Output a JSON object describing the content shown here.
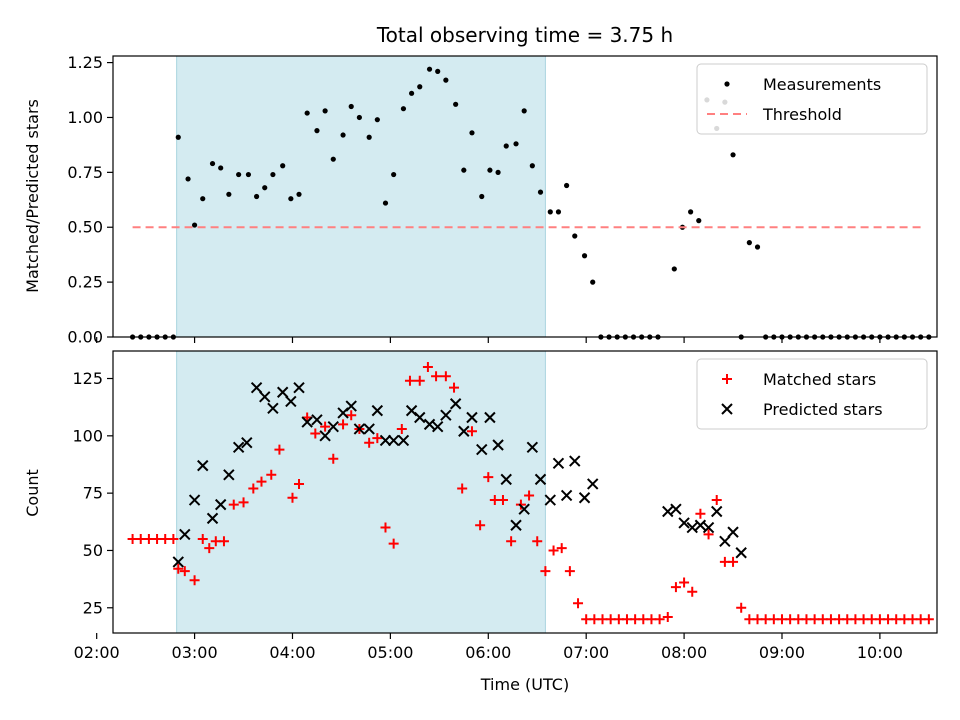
{
  "chart_data": [
    {
      "type": "scatter",
      "title": "Total observing time = 3.75 h",
      "ylabel": "Matched/Predicted stars",
      "xlabel": "",
      "xlim": [
        "02:10",
        "10:35"
      ],
      "ylim": [
        0,
        1.28
      ],
      "yticks": [
        "0.00",
        "0.25",
        "0.50",
        "0.75",
        "1.00",
        "1.25"
      ],
      "shaded_span": [
        "02:49",
        "06:35"
      ],
      "shade_color": "#d4ebf1",
      "legend_position": "upper right",
      "series": [
        {
          "name": "Measurements",
          "marker": "dot",
          "color": "#000000",
          "points": [
            [
              "02:22",
              0
            ],
            [
              "02:27",
              0
            ],
            [
              "02:32",
              0
            ],
            [
              "02:37",
              0
            ],
            [
              "02:42",
              0
            ],
            [
              "02:47",
              0
            ],
            [
              "02:50",
              0.91
            ],
            [
              "02:56",
              0.72
            ],
            [
              "03:00",
              0.51
            ],
            [
              "03:05",
              0.63
            ],
            [
              "03:11",
              0.79
            ],
            [
              "03:16",
              0.77
            ],
            [
              "03:21",
              0.65
            ],
            [
              "03:27",
              0.74
            ],
            [
              "03:33",
              0.74
            ],
            [
              "03:38",
              0.64
            ],
            [
              "03:43",
              0.68
            ],
            [
              "03:48",
              0.74
            ],
            [
              "03:54",
              0.78
            ],
            [
              "03:59",
              0.63
            ],
            [
              "04:04",
              0.65
            ],
            [
              "04:09",
              1.02
            ],
            [
              "04:15",
              0.94
            ],
            [
              "04:20",
              1.03
            ],
            [
              "04:25",
              0.81
            ],
            [
              "04:31",
              0.92
            ],
            [
              "04:36",
              1.05
            ],
            [
              "04:41",
              1.0
            ],
            [
              "04:47",
              0.91
            ],
            [
              "04:52",
              0.99
            ],
            [
              "04:57",
              0.61
            ],
            [
              "05:02",
              0.74
            ],
            [
              "05:08",
              1.04
            ],
            [
              "05:13",
              1.11
            ],
            [
              "05:18",
              1.14
            ],
            [
              "05:24",
              1.22
            ],
            [
              "05:29",
              1.21
            ],
            [
              "05:34",
              1.17
            ],
            [
              "05:40",
              1.06
            ],
            [
              "05:45",
              0.76
            ],
            [
              "05:50",
              0.93
            ],
            [
              "05:56",
              0.64
            ],
            [
              "06:01",
              0.76
            ],
            [
              "06:06",
              0.75
            ],
            [
              "06:11",
              0.87
            ],
            [
              "06:17",
              0.88
            ],
            [
              "06:22",
              1.03
            ],
            [
              "06:27",
              0.78
            ],
            [
              "06:32",
              0.66
            ],
            [
              "06:38",
              0.57
            ],
            [
              "06:43",
              0.57
            ],
            [
              "06:48",
              0.69
            ],
            [
              "06:53",
              0.46
            ],
            [
              "06:59",
              0.37
            ],
            [
              "07:04",
              0.25
            ],
            [
              "07:09",
              0
            ],
            [
              "07:14",
              0
            ],
            [
              "07:19",
              0
            ],
            [
              "07:24",
              0
            ],
            [
              "07:29",
              0
            ],
            [
              "07:34",
              0
            ],
            [
              "07:39",
              0
            ],
            [
              "07:44",
              0
            ],
            [
              "07:54",
              0.31
            ],
            [
              "07:59",
              0.5
            ],
            [
              "08:04",
              0.57
            ],
            [
              "08:09",
              0.53
            ],
            [
              "08:14",
              1.08
            ],
            [
              "08:20",
              0.95
            ],
            [
              "08:25",
              1.07
            ],
            [
              "08:30",
              0.83
            ],
            [
              "08:35",
              0
            ],
            [
              "08:40",
              0.43
            ],
            [
              "08:45",
              0.41
            ],
            [
              "08:50",
              0
            ],
            [
              "08:55",
              0
            ],
            [
              "09:00",
              0
            ],
            [
              "09:05",
              0
            ],
            [
              "09:10",
              0
            ],
            [
              "09:15",
              0
            ],
            [
              "09:20",
              0
            ],
            [
              "09:25",
              0
            ],
            [
              "09:30",
              0
            ],
            [
              "09:35",
              0
            ],
            [
              "09:40",
              0
            ],
            [
              "09:45",
              0
            ],
            [
              "09:50",
              0
            ],
            [
              "09:55",
              0
            ],
            [
              "10:00",
              0
            ],
            [
              "10:05",
              0
            ],
            [
              "10:10",
              0
            ],
            [
              "10:15",
              0
            ],
            [
              "10:20",
              0
            ],
            [
              "10:25",
              0
            ],
            [
              "10:30",
              0
            ]
          ]
        },
        {
          "name": "Threshold",
          "marker": "dashed-line",
          "color": "#ff8080",
          "points": [
            [
              "02:22",
              0.5
            ],
            [
              "10:25",
              0.5
            ]
          ]
        }
      ]
    },
    {
      "type": "scatter",
      "title": "",
      "ylabel": "Count",
      "xlabel": "Time (UTC)",
      "xlim": [
        "02:10",
        "10:35"
      ],
      "ylim": [
        14,
        137
      ],
      "yticks": [
        "25",
        "50",
        "75",
        "100",
        "125"
      ],
      "xticks": [
        "02:00",
        "03:00",
        "04:00",
        "05:00",
        "06:00",
        "07:00",
        "08:00",
        "09:00",
        "10:00"
      ],
      "shaded_span": [
        "02:49",
        "06:35"
      ],
      "shade_color": "#d4ebf1",
      "legend_position": "upper right",
      "series": [
        {
          "name": "Matched stars",
          "marker": "plus",
          "color": "#ff0000",
          "points": [
            [
              "02:22",
              55
            ],
            [
              "02:27",
              55
            ],
            [
              "02:32",
              55
            ],
            [
              "02:37",
              55
            ],
            [
              "02:42",
              55
            ],
            [
              "02:47",
              55
            ],
            [
              "02:50",
              42
            ],
            [
              "02:54",
              41
            ],
            [
              "03:00",
              37
            ],
            [
              "03:05",
              55
            ],
            [
              "03:09",
              51
            ],
            [
              "03:13",
              54
            ],
            [
              "03:18",
              54
            ],
            [
              "03:24",
              70
            ],
            [
              "03:30",
              71
            ],
            [
              "03:36",
              77
            ],
            [
              "03:41",
              80
            ],
            [
              "03:47",
              83
            ],
            [
              "03:52",
              94
            ],
            [
              "04:00",
              73
            ],
            [
              "04:04",
              79
            ],
            [
              "04:09",
              108
            ],
            [
              "04:14",
              101
            ],
            [
              "04:20",
              104
            ],
            [
              "04:25",
              90
            ],
            [
              "04:31",
              105
            ],
            [
              "04:36",
              109
            ],
            [
              "04:41",
              103
            ],
            [
              "04:47",
              97
            ],
            [
              "04:52",
              99
            ],
            [
              "04:57",
              60
            ],
            [
              "05:02",
              53
            ],
            [
              "05:07",
              103
            ],
            [
              "05:12",
              124
            ],
            [
              "05:18",
              124
            ],
            [
              "05:23",
              130
            ],
            [
              "05:28",
              126
            ],
            [
              "05:34",
              126
            ],
            [
              "05:39",
              121
            ],
            [
              "05:44",
              77
            ],
            [
              "05:50",
              102
            ],
            [
              "05:55",
              61
            ],
            [
              "06:00",
              82
            ],
            [
              "06:04",
              72
            ],
            [
              "06:09",
              72
            ],
            [
              "06:14",
              54
            ],
            [
              "06:20",
              70
            ],
            [
              "06:25",
              74
            ],
            [
              "06:30",
              54
            ],
            [
              "06:35",
              41
            ],
            [
              "06:40",
              50
            ],
            [
              "06:45",
              51
            ],
            [
              "06:50",
              41
            ],
            [
              "06:55",
              27
            ],
            [
              "07:00",
              20
            ],
            [
              "07:05",
              20
            ],
            [
              "07:10",
              20
            ],
            [
              "07:15",
              20
            ],
            [
              "07:20",
              20
            ],
            [
              "07:25",
              20
            ],
            [
              "07:30",
              20
            ],
            [
              "07:35",
              20
            ],
            [
              "07:40",
              20
            ],
            [
              "07:45",
              20
            ],
            [
              "07:50",
              21
            ],
            [
              "07:55",
              34
            ],
            [
              "08:00",
              36
            ],
            [
              "08:05",
              32
            ],
            [
              "08:10",
              66
            ],
            [
              "08:15",
              57
            ],
            [
              "08:20",
              72
            ],
            [
              "08:25",
              45
            ],
            [
              "08:30",
              45
            ],
            [
              "08:35",
              25
            ],
            [
              "08:40",
              20
            ],
            [
              "08:45",
              20
            ],
            [
              "08:50",
              20
            ],
            [
              "08:55",
              20
            ],
            [
              "09:00",
              20
            ],
            [
              "09:05",
              20
            ],
            [
              "09:10",
              20
            ],
            [
              "09:15",
              20
            ],
            [
              "09:20",
              20
            ],
            [
              "09:25",
              20
            ],
            [
              "09:30",
              20
            ],
            [
              "09:35",
              20
            ],
            [
              "09:40",
              20
            ],
            [
              "09:45",
              20
            ],
            [
              "09:50",
              20
            ],
            [
              "09:55",
              20
            ],
            [
              "10:00",
              20
            ],
            [
              "10:05",
              20
            ],
            [
              "10:10",
              20
            ],
            [
              "10:15",
              20
            ],
            [
              "10:20",
              20
            ],
            [
              "10:25",
              20
            ],
            [
              "10:30",
              20
            ]
          ]
        },
        {
          "name": "Predicted stars",
          "marker": "x",
          "color": "#000000",
          "points": [
            [
              "02:50",
              45
            ],
            [
              "02:54",
              57
            ],
            [
              "03:00",
              72
            ],
            [
              "03:05",
              87
            ],
            [
              "03:11",
              64
            ],
            [
              "03:16",
              70
            ],
            [
              "03:21",
              83
            ],
            [
              "03:27",
              95
            ],
            [
              "03:32",
              97
            ],
            [
              "03:38",
              121
            ],
            [
              "03:43",
              117
            ],
            [
              "03:48",
              112
            ],
            [
              "03:54",
              119
            ],
            [
              "03:59",
              115
            ],
            [
              "04:04",
              121
            ],
            [
              "04:09",
              106
            ],
            [
              "04:15",
              107
            ],
            [
              "04:20",
              100
            ],
            [
              "04:25",
              104
            ],
            [
              "04:31",
              110
            ],
            [
              "04:36",
              113
            ],
            [
              "04:41",
              103
            ],
            [
              "04:47",
              103
            ],
            [
              "04:52",
              111
            ],
            [
              "04:57",
              98
            ],
            [
              "05:02",
              98
            ],
            [
              "05:08",
              98
            ],
            [
              "05:13",
              111
            ],
            [
              "05:18",
              108
            ],
            [
              "05:24",
              105
            ],
            [
              "05:29",
              104
            ],
            [
              "05:34",
              109
            ],
            [
              "05:40",
              114
            ],
            [
              "05:45",
              102
            ],
            [
              "05:50",
              108
            ],
            [
              "05:56",
              94
            ],
            [
              "06:01",
              108
            ],
            [
              "06:06",
              96
            ],
            [
              "06:11",
              81
            ],
            [
              "06:17",
              61
            ],
            [
              "06:22",
              68
            ],
            [
              "06:27",
              95
            ],
            [
              "06:32",
              81
            ],
            [
              "06:38",
              72
            ],
            [
              "06:43",
              88
            ],
            [
              "06:48",
              74
            ],
            [
              "06:53",
              89
            ],
            [
              "06:59",
              73
            ],
            [
              "07:04",
              79
            ],
            [
              "07:50",
              67
            ],
            [
              "07:55",
              68
            ],
            [
              "08:00",
              62
            ],
            [
              "08:05",
              60
            ],
            [
              "08:10",
              61
            ],
            [
              "08:15",
              60
            ],
            [
              "08:20",
              67
            ],
            [
              "08:25",
              54
            ],
            [
              "08:30",
              58
            ],
            [
              "08:35",
              49
            ]
          ]
        }
      ]
    }
  ]
}
